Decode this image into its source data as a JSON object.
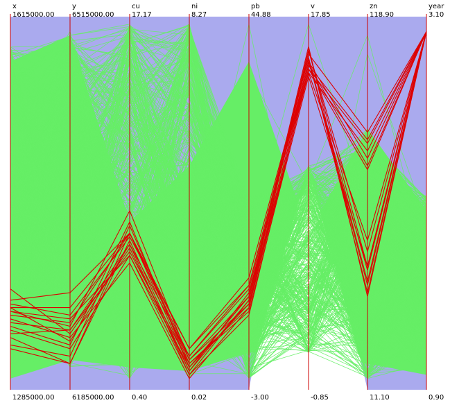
{
  "chart_data": {
    "type": "parallel-coordinates",
    "axes": [
      {
        "name": "x",
        "max": "1615000.00",
        "min": "1285000.00"
      },
      {
        "name": "y",
        "max": "6515000.00",
        "min": "6185000.00"
      },
      {
        "name": "cu",
        "max": "17.17",
        "min": "0.40"
      },
      {
        "name": "ni",
        "max": "8.27",
        "min": "0.02"
      },
      {
        "name": "pb",
        "max": "44.88",
        "min": "-3.00"
      },
      {
        "name": "v",
        "max": "17.85",
        "min": "-0.85"
      },
      {
        "name": "zn",
        "max": "118.90",
        "min": "11.10"
      },
      {
        "name": "year",
        "max": "3.10",
        "min": "0.90"
      }
    ],
    "value_scale": "fraction of axis range (0 = min, 1 = max)",
    "colors": {
      "background": "#aaaaee",
      "axis": "#cc0000",
      "unselected": "#66ee66",
      "selected": "#dd0000"
    },
    "selected_lines": [
      [
        0.2,
        0.18,
        0.42,
        0.08,
        0.23,
        0.87,
        0.6,
        0.96
      ],
      [
        0.21,
        0.19,
        0.36,
        0.06,
        0.25,
        0.88,
        0.62,
        0.96
      ],
      [
        0.22,
        0.22,
        0.42,
        0.09,
        0.27,
        0.88,
        0.32,
        0.96
      ],
      [
        0.18,
        0.16,
        0.39,
        0.04,
        0.24,
        0.86,
        0.66,
        0.96
      ],
      [
        0.24,
        0.26,
        0.42,
        0.11,
        0.28,
        0.89,
        0.26,
        0.96
      ],
      [
        0.19,
        0.14,
        0.34,
        0.03,
        0.22,
        0.85,
        0.64,
        0.96
      ],
      [
        0.17,
        0.12,
        0.45,
        0.06,
        0.25,
        0.92,
        0.25,
        0.96
      ],
      [
        0.15,
        0.16,
        0.37,
        0.07,
        0.22,
        0.91,
        0.37,
        0.96
      ],
      [
        0.14,
        0.07,
        0.4,
        0.05,
        0.24,
        0.9,
        0.69,
        0.96
      ],
      [
        0.23,
        0.2,
        0.41,
        0.11,
        0.3,
        0.89,
        0.29,
        0.96
      ],
      [
        0.16,
        0.11,
        0.36,
        0.04,
        0.2,
        0.86,
        0.59,
        0.96
      ],
      [
        0.12,
        0.09,
        0.44,
        0.07,
        0.21,
        0.84,
        0.33,
        0.96
      ],
      [
        0.27,
        0.15,
        0.38,
        0.05,
        0.26,
        0.87,
        0.67,
        0.96
      ],
      [
        0.22,
        0.13,
        0.39,
        0.09,
        0.28,
        0.89,
        0.28,
        0.96
      ],
      [
        0.11,
        0.07,
        0.42,
        0.06,
        0.23,
        0.85,
        0.4,
        0.96
      ],
      [
        0.21,
        0.17,
        0.48,
        0.08,
        0.25,
        0.91,
        0.33,
        0.96
      ]
    ]
  }
}
